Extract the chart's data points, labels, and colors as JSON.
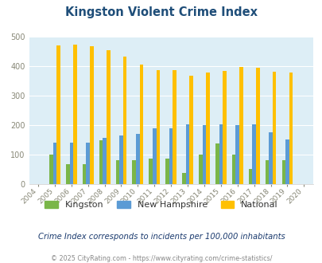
{
  "title": "Kingston Violent Crime Index",
  "years": [
    2004,
    2005,
    2006,
    2007,
    2008,
    2009,
    2010,
    2011,
    2012,
    2013,
    2014,
    2015,
    2016,
    2017,
    2018,
    2019,
    2020
  ],
  "kingston": [
    0,
    100,
    67,
    67,
    150,
    82,
    82,
    87,
    87,
    37,
    100,
    137,
    100,
    52,
    82,
    80,
    0
  ],
  "new_hampshire": [
    0,
    140,
    142,
    142,
    158,
    165,
    170,
    190,
    190,
    202,
    200,
    202,
    200,
    202,
    175,
    152,
    0
  ],
  "national": [
    0,
    470,
    473,
    468,
    455,
    432,
    405,
    388,
    388,
    368,
    378,
    384,
    398,
    394,
    381,
    379,
    0
  ],
  "kingston_color": "#7ab648",
  "nh_color": "#5b9bd5",
  "national_color": "#ffc000",
  "bg_color": "#ddeef6",
  "ylim": [
    0,
    500
  ],
  "yticks": [
    0,
    100,
    200,
    300,
    400,
    500
  ],
  "subtitle": "Crime Index corresponds to incidents per 100,000 inhabitants",
  "footer": "© 2025 CityRating.com - https://www.cityrating.com/crime-statistics/",
  "title_color": "#1f4e79",
  "subtitle_color": "#1a3a6e",
  "footer_color": "#888888",
  "bar_width": 0.22
}
